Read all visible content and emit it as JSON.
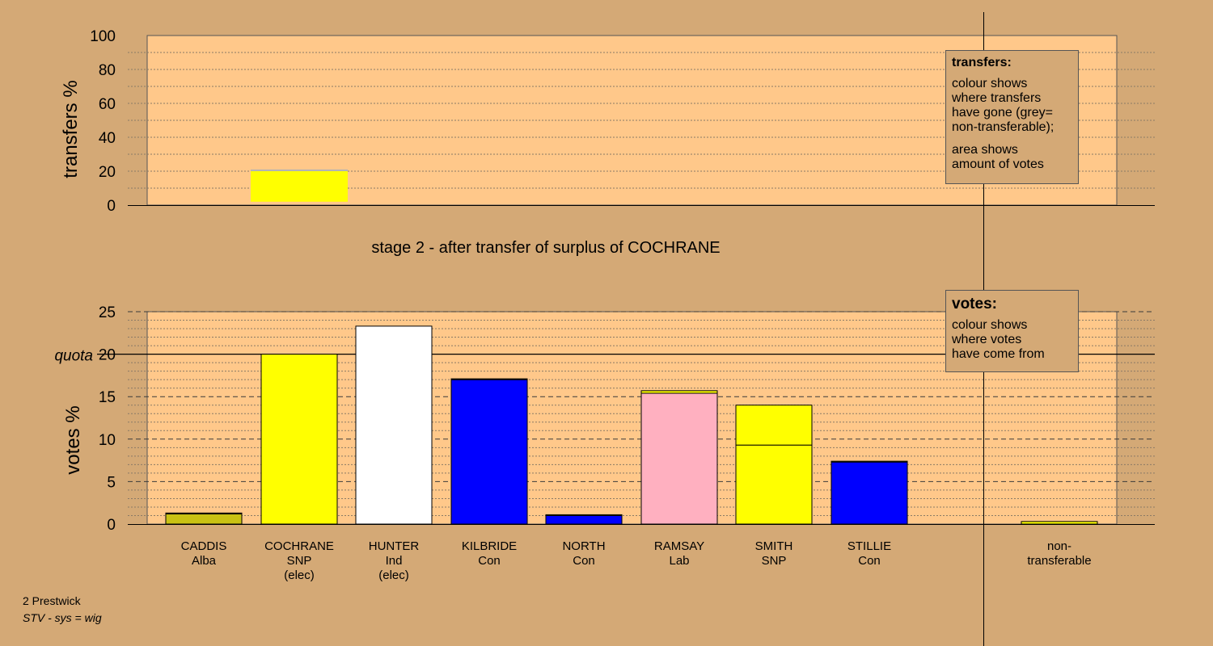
{
  "colors": {
    "background": "#D4A976",
    "plot_background": "#FFC88A",
    "snp": "#FFFF00",
    "alba": "#C9C214",
    "ind": "#FFFFFF",
    "con": "#0000FF",
    "lab": "#FFB0C0",
    "nontransferable": "#B4B4B4"
  },
  "chart_data": [
    {
      "type": "bar",
      "panel": "transfers",
      "ylabel": "transfers %",
      "ylim": [
        0,
        100
      ],
      "yticks": [
        0,
        20,
        40,
        60,
        80,
        100
      ],
      "grid": true,
      "bars": [
        {
          "category": "COCHRANE",
          "segments": [
            {
              "from": 2,
              "to": 20,
              "color": "#FFFF00",
              "source": "SNP"
            },
            {
              "from": 20,
              "to": 21,
              "color": "#B4B4B4",
              "source": "non-transferable"
            }
          ]
        }
      ]
    },
    {
      "type": "bar",
      "panel": "votes",
      "ylabel": "votes %",
      "ylim": [
        0,
        25
      ],
      "yticks": [
        0,
        5,
        10,
        15,
        20,
        25
      ],
      "quota": 20,
      "quota_label": "quota",
      "grid": true,
      "categories": [
        "CADDIS",
        "COCHRANE",
        "HUNTER",
        "KILBRIDE",
        "NORTH",
        "RAMSAY",
        "SMITH",
        "STILLIE",
        "non-"
      ],
      "parties": [
        "Alba",
        "SNP",
        "Ind",
        "Con",
        "Con",
        "Lab",
        "SNP",
        "Con",
        "transferable"
      ],
      "notes": [
        "",
        "(elec)",
        "(elec)",
        "",
        "",
        "",
        "",
        "",
        ""
      ],
      "bars": [
        {
          "category": "CADDIS",
          "segments": [
            {
              "value": 1.2,
              "color": "#C9C214",
              "source": "Alba"
            },
            {
              "value": 0.1,
              "color": "#FFFF00",
              "source": "SNP"
            }
          ]
        },
        {
          "category": "COCHRANE",
          "segments": [
            {
              "value": 20.0,
              "color": "#FFFF00",
              "source": "SNP"
            }
          ]
        },
        {
          "category": "HUNTER",
          "segments": [
            {
              "value": 23.3,
              "color": "#FFFFFF",
              "source": "Ind"
            }
          ]
        },
        {
          "category": "KILBRIDE",
          "segments": [
            {
              "value": 17.0,
              "color": "#0000FF",
              "source": "Con"
            },
            {
              "value": 0.1,
              "color": "#FFFF00",
              "source": "SNP"
            }
          ]
        },
        {
          "category": "NORTH",
          "segments": [
            {
              "value": 1.0,
              "color": "#0000FF",
              "source": "Con"
            },
            {
              "value": 0.1,
              "color": "#FFFF00",
              "source": "SNP"
            }
          ]
        },
        {
          "category": "RAMSAY",
          "segments": [
            {
              "value": 15.4,
              "color": "#FFB0C0",
              "source": "Lab"
            },
            {
              "value": 0.3,
              "color": "#FFFF00",
              "source": "SNP"
            }
          ]
        },
        {
          "category": "SMITH",
          "segments": [
            {
              "value": 9.3,
              "color": "#FFFF00",
              "source": "SNP"
            },
            {
              "value": 4.7,
              "color": "#FFFF00",
              "source": "SNP (COCHRANE surplus)"
            }
          ]
        },
        {
          "category": "STILLIE",
          "segments": [
            {
              "value": 7.3,
              "color": "#0000FF",
              "source": "Con"
            },
            {
              "value": 0.1,
              "color": "#FFFF00",
              "source": "SNP"
            }
          ]
        },
        {
          "category": "non-transferable",
          "segments": [
            {
              "value": 0.3,
              "color": "#FFFF00",
              "source": "SNP"
            }
          ]
        }
      ]
    }
  ],
  "stage_title": "stage 2 - after transfer of surplus of COCHRANE",
  "legend_transfers": {
    "title": "transfers:",
    "lines1": [
      "colour shows",
      "where transfers",
      "have gone (grey=",
      "non-transferable);"
    ],
    "lines2": [
      "area shows",
      "amount of votes"
    ]
  },
  "legend_votes": {
    "title": "votes:",
    "lines": [
      "colour shows",
      "where votes",
      "have come from"
    ]
  },
  "footer": {
    "line1": "2 Prestwick",
    "line2": "STV - sys = wig"
  }
}
